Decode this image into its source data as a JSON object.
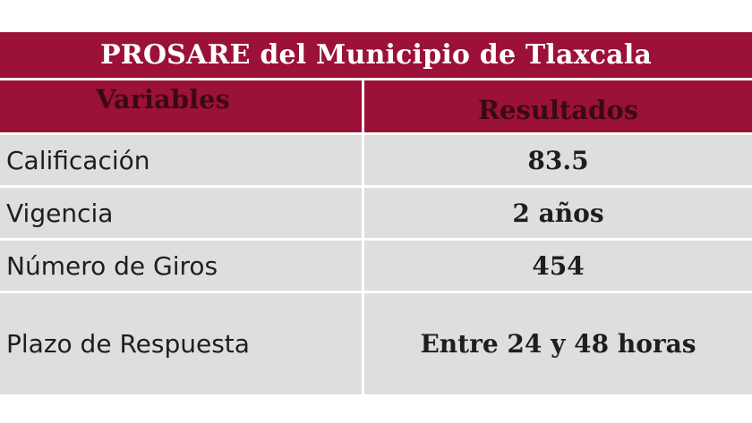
{
  "table": {
    "title": "PROSARE del Municipio de Tlaxcala",
    "headers": [
      "Variables",
      "Resultados"
    ],
    "rows": [
      {
        "variable": "Calificación",
        "result": "83.5"
      },
      {
        "variable": "Vigencia",
        "result": "2 años"
      },
      {
        "variable": "Número de Giros",
        "result": "454"
      },
      {
        "variable": "Plazo de Respuesta",
        "result": "Entre 24 y 48 horas"
      }
    ],
    "colors": {
      "header_bg": "#9b1138",
      "title_text": "#ffffff",
      "header_text": "#3a0a14",
      "row_bg": "#dedede",
      "body_text": "#1e1e1e"
    }
  }
}
